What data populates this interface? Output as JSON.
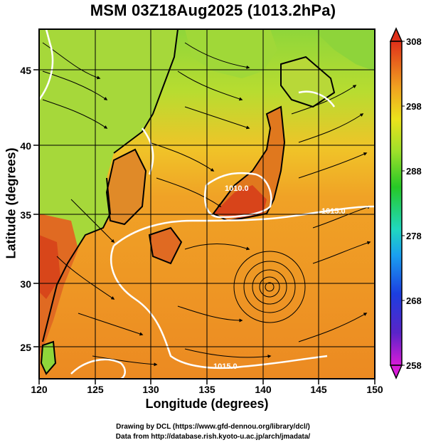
{
  "title": "MSM 03Z18Aug2025 (1013.2hPa)",
  "axes": {
    "xlabel": "Longitude (degrees)",
    "ylabel": "Latitude  (degrees)",
    "xticks": [
      120,
      125,
      130,
      135,
      140,
      145,
      150
    ],
    "yticks": [
      25,
      30,
      35,
      40,
      45
    ],
    "xlim": [
      120,
      150
    ],
    "ylim": [
      22.4,
      47.6
    ]
  },
  "colorbar": {
    "ticks": [
      308,
      298,
      288,
      278,
      268,
      258
    ],
    "range": [
      258,
      308
    ]
  },
  "contours": [
    {
      "label": "1010.0"
    },
    {
      "label": "1015.0"
    },
    {
      "label": "1015.0"
    }
  ],
  "cyclone_center": {
    "lon": 140.3,
    "lat": 29.7
  },
  "colors": {
    "sea": "#ea8a22",
    "land_hot": "#dd4a1a",
    "land_cool": "#8fd63a",
    "grid": "#000000",
    "streamline": "#000000",
    "isobar": "#ffffff"
  },
  "credits": {
    "line1": "Drawing by DCL (https://www.gfd-dennou.org/library/dcl/)",
    "line2": "Data from http://database.rish.kyoto-u.ac.jp/arch/jmadata/"
  }
}
